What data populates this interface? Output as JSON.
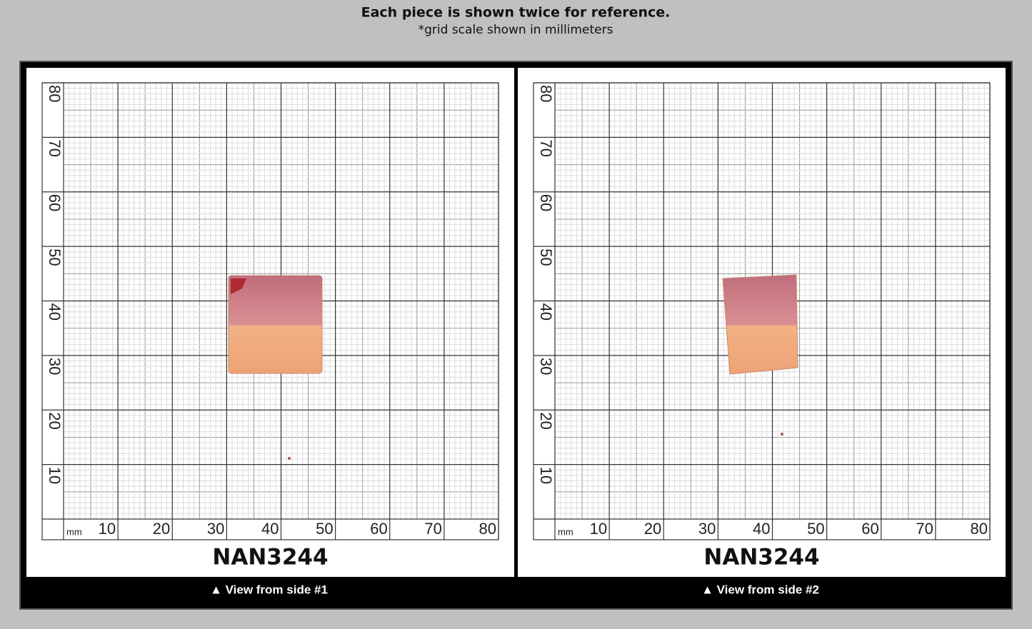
{
  "header": {
    "title": "Each piece is shown twice for reference.",
    "subtitle": "*grid scale shown in millimeters"
  },
  "grid": {
    "unit": "mm",
    "x_labels": [
      "10",
      "20",
      "30",
      "40",
      "50",
      "60",
      "70",
      "80"
    ],
    "y_labels": [
      "10",
      "20",
      "30",
      "40",
      "50",
      "60",
      "70",
      "80"
    ]
  },
  "panels": [
    {
      "label": "NAN3244",
      "caption": "▲ View from side #1"
    },
    {
      "label": "NAN3244",
      "caption": "▲ View from side #2"
    }
  ]
}
